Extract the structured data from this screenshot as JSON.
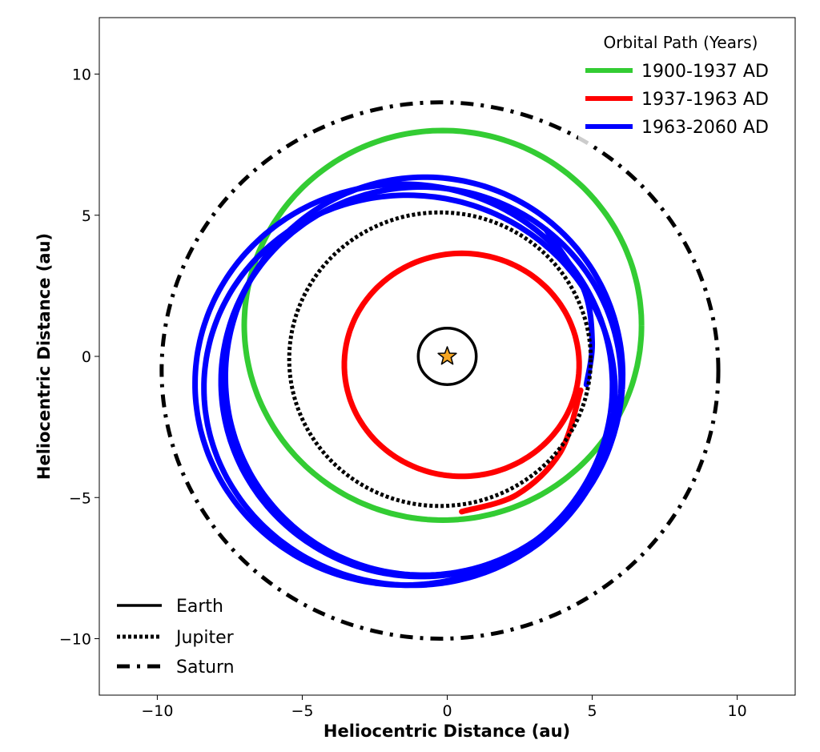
{
  "chart_data": {
    "type": "line",
    "xlabel": "Heliocentric Distance (au)",
    "ylabel": "Heliocentric Distance (au)",
    "xlim": [
      -12,
      12
    ],
    "ylim": [
      -12,
      12
    ],
    "x_ticks": [
      -10,
      -5,
      0,
      5,
      10
    ],
    "y_ticks": [
      -10,
      -5,
      0,
      5,
      10
    ],
    "x_tick_labels": [
      "−10",
      "−5",
      "0",
      "5",
      "10"
    ],
    "y_tick_labels": [
      "−10",
      "−5",
      "0",
      "5",
      "10"
    ],
    "grid": false,
    "sun": {
      "x": 0,
      "y": 0,
      "marker": "star",
      "color": "#f5a623"
    },
    "legend_orbits": {
      "title": "Orbital Path (Years)",
      "placement": "top-right",
      "entries": [
        {
          "label": "1900-1937 AD",
          "color": "#33cc33"
        },
        {
          "label": "1937-1963 AD",
          "color": "#ff0000"
        },
        {
          "label": "1963-2060 AD",
          "color": "#0000ff"
        }
      ]
    },
    "legend_planets": {
      "placement": "bottom-left",
      "entries": [
        {
          "label": "Earth",
          "style": "solid"
        },
        {
          "label": "Jupiter",
          "style": "dotted"
        },
        {
          "label": "Saturn",
          "style": "dashdot"
        }
      ]
    },
    "planets": [
      {
        "name": "Earth",
        "style": "solid",
        "cx": 0,
        "cy": 0,
        "rx": 1.0,
        "ry": 1.0
      },
      {
        "name": "Jupiter",
        "style": "dotted",
        "cx": -0.25,
        "cy": -0.1,
        "rx": 5.2,
        "ry": 5.2
      },
      {
        "name": "Saturn",
        "style": "dashdot",
        "cx": -0.25,
        "cy": -0.5,
        "rx": 9.6,
        "ry": 9.5
      }
    ],
    "series": [
      {
        "name": "1900-1937 AD",
        "color": "#33cc33",
        "arcs": [
          {
            "cx": -0.15,
            "cy": 1.1,
            "rx": 6.85,
            "ry": 6.9,
            "start": 0,
            "end": 360,
            "turns": 1
          }
        ]
      },
      {
        "name": "1937-1963 AD",
        "color": "#ff0000",
        "arcs": [
          {
            "cx": 0.5,
            "cy": -0.3,
            "rx": 4.05,
            "ry": 3.95,
            "start": 0,
            "end": 360,
            "turns": 1
          }
        ],
        "transition": [
          [
            0.5,
            -5.5
          ],
          [
            2.4,
            -4.9
          ],
          [
            3.9,
            -3.4
          ],
          [
            4.6,
            -1.2
          ]
        ]
      },
      {
        "name": "1963-2060 AD",
        "color": "#0000ff",
        "arcs": [
          {
            "cx": -1.5,
            "cy": -1.0,
            "rx": 7.2,
            "ry": 7.1,
            "tilt": -8,
            "start": 0,
            "end": 360,
            "turns": 1
          },
          {
            "cx": -1.3,
            "cy": -1.2,
            "rx": 7.1,
            "ry": 6.9,
            "tilt": -12,
            "start": 0,
            "end": 360,
            "turns": 1
          },
          {
            "cx": -0.9,
            "cy": -0.9,
            "rx": 6.9,
            "ry": 6.9,
            "tilt": -5,
            "start": 0,
            "end": 360,
            "turns": 1
          },
          {
            "cx": -0.8,
            "cy": -0.7,
            "rx": 6.85,
            "ry": 7.05,
            "tilt": -4,
            "start": 0,
            "end": 360,
            "turns": 1
          }
        ],
        "transition": [
          [
            4.8,
            -1.0
          ],
          [
            5.0,
            0.5
          ],
          [
            4.7,
            2.4
          ],
          [
            3.4,
            4.5
          ]
        ]
      }
    ]
  }
}
